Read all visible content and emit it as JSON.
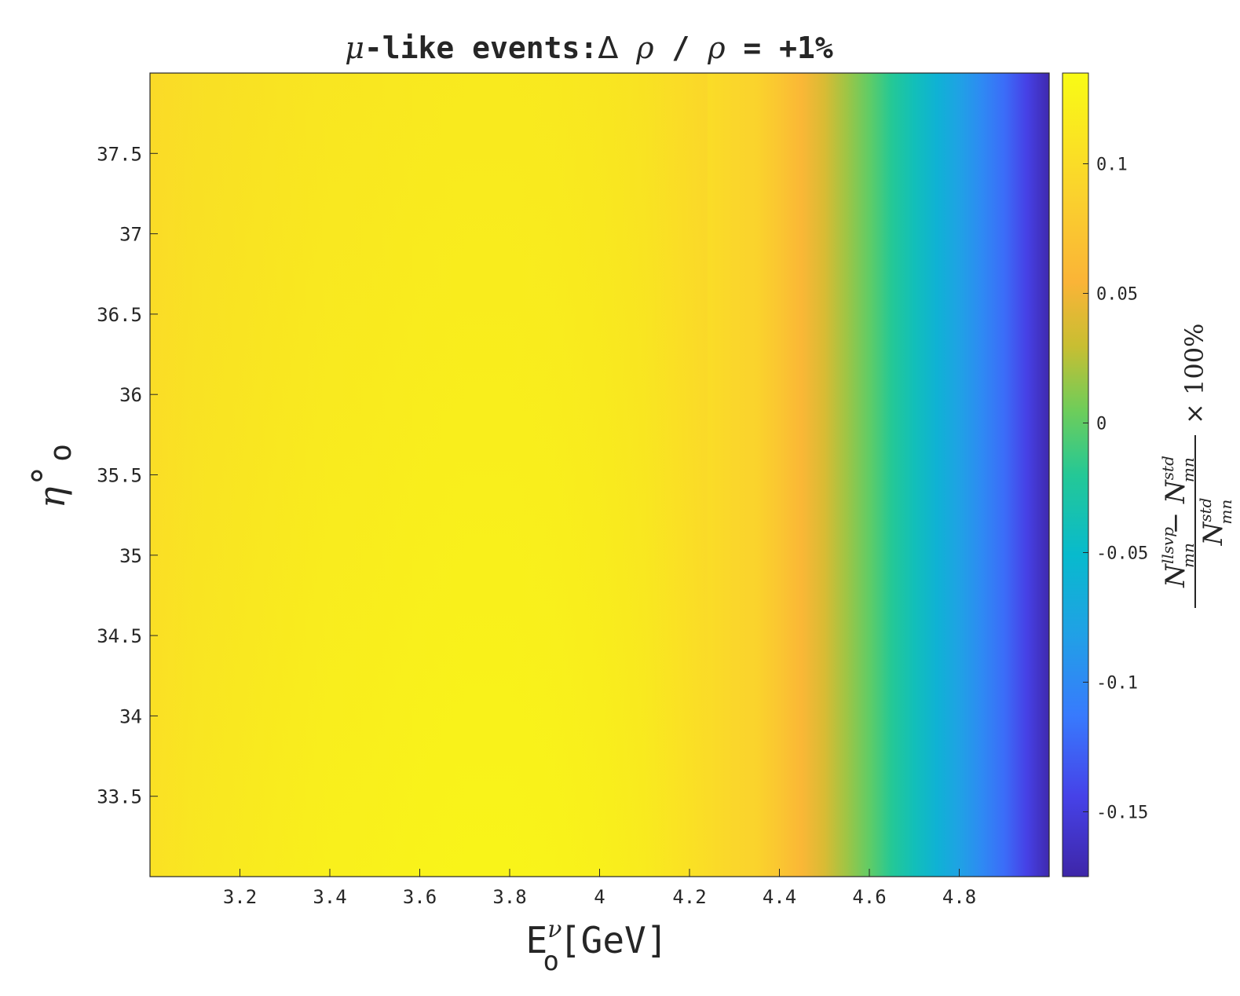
{
  "chart_data": {
    "type": "heatmap",
    "title": "μ-like events:Δ ρ / ρ = +1%",
    "title_parts": {
      "mu": "μ",
      "rest": "-like events:",
      "delta": "Δ",
      "rho1": "ρ",
      "slash": " / ",
      "rho2": "ρ",
      "tail": " = +1%"
    },
    "xlabel": "E_o^ν[GeV]",
    "xlabel_parts": {
      "E": "E",
      "sup": "ν",
      "sub": "o",
      "unit": "[GeV]"
    },
    "ylabel": "η°_o",
    "ylabel_parts": {
      "eta": "η",
      "deg": "°",
      "sub": "o"
    },
    "colorbar_label": "(N_mn^llsvp − N_mn^std) / N_mn^std × 100%",
    "colorbar_label_parts": {
      "N1": "N",
      "sup1": "llsvp",
      "sub1": "mn",
      "minus": " − ",
      "N2": "N",
      "sup2": "std",
      "sub2": "mn",
      "N3": "N",
      "sup3": "std",
      "sub3": "mn",
      "times": "× 100%"
    },
    "xlim": [
      3.0,
      5.0
    ],
    "ylim": [
      33.0,
      38.0
    ],
    "clim": [
      -0.175,
      0.135
    ],
    "xticks": [
      3.2,
      3.4,
      3.6,
      3.8,
      4.0,
      4.2,
      4.4,
      4.6,
      4.8
    ],
    "xtick_labels": [
      "3.2",
      "3.4",
      "3.6",
      "3.8",
      "4",
      "4.2",
      "4.4",
      "4.6",
      "4.8"
    ],
    "yticks": [
      33.5,
      34.0,
      34.5,
      35.0,
      35.5,
      36.0,
      36.5,
      37.0,
      37.5
    ],
    "ytick_labels": [
      "33.5",
      "34",
      "34.5",
      "35",
      "35.5",
      "36",
      "36.5",
      "37",
      "37.5"
    ],
    "cbticks": [
      -0.15,
      -0.1,
      -0.05,
      0,
      0.05,
      0.1
    ],
    "cbtick_labels": [
      "-0.15",
      "-0.1",
      "-0.05",
      "0",
      "0.05",
      "0.1"
    ],
    "colormap": "parula",
    "grid": false,
    "profile_x": [
      3.0,
      3.1,
      3.2,
      3.3,
      3.4,
      3.5,
      3.6,
      3.7,
      3.8,
      3.9,
      4.0,
      4.1,
      4.2,
      4.3,
      4.35,
      4.4,
      4.45,
      4.5,
      4.55,
      4.6,
      4.65,
      4.7,
      4.75,
      4.8,
      4.85,
      4.9,
      4.95,
      5.0
    ],
    "profile_values": [
      0.105,
      0.112,
      0.116,
      0.119,
      0.122,
      0.124,
      0.126,
      0.127,
      0.127,
      0.126,
      0.123,
      0.117,
      0.105,
      0.093,
      0.09,
      0.075,
      0.058,
      0.038,
      0.018,
      0.0,
      -0.02,
      -0.04,
      -0.06,
      -0.08,
      -0.1,
      -0.12,
      -0.145,
      -0.172
    ],
    "profile_y_shift": 0.006
  }
}
